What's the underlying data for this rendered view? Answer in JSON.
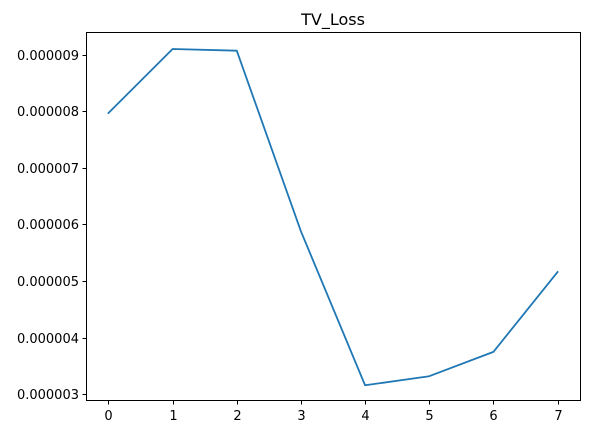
{
  "chart_data": {
    "type": "line",
    "title": "TV_Loss",
    "xlabel": "",
    "ylabel": "",
    "x": [
      0,
      1,
      2,
      3,
      4,
      5,
      6,
      7
    ],
    "series": [
      {
        "values": [
          7.97e-06,
          9.1e-06,
          9.07e-06,
          5.88e-06,
          3.16e-06,
          3.32e-06,
          3.75e-06,
          5.16e-06
        ],
        "color": "#1f77b4"
      }
    ],
    "xticks": [
      0,
      1,
      2,
      3,
      4,
      5,
      6,
      7
    ],
    "xtick_labels": [
      "0",
      "1",
      "2",
      "3",
      "4",
      "5",
      "6",
      "7"
    ],
    "yticks": [
      3e-06,
      4e-06,
      5e-06,
      6e-06,
      7e-06,
      8e-06,
      9e-06
    ],
    "ytick_labels": [
      "0.000003",
      "0.000004",
      "0.000005",
      "0.000006",
      "0.000007",
      "0.000008",
      "0.000009"
    ],
    "xlim": [
      -0.35,
      7.35
    ],
    "ylim": [
      2.9e-06,
      9.4e-06
    ],
    "grid": false,
    "legend": "none"
  }
}
